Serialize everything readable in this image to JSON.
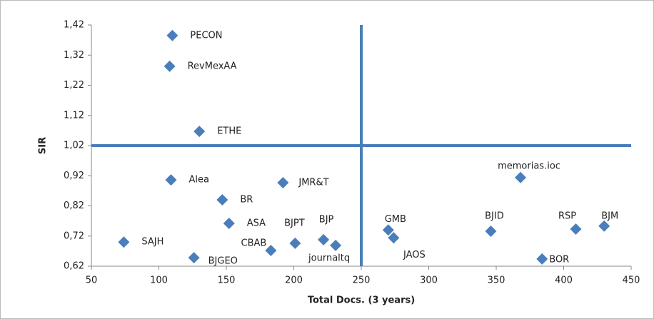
{
  "chart_data": {
    "type": "scatter",
    "x_label": "Total Docs. (3 years)",
    "y_label": "SIR",
    "color": "#4a7ebb",
    "labels": [
      "PECON",
      "RevMexAA",
      "ETHE",
      "Alea",
      "JMR&T",
      "BR",
      "ASA",
      "SAJH",
      "BJPT",
      "BJP",
      "journaltq",
      "CBAB",
      "BJGEO",
      "GMB",
      "JAOS",
      "BJID",
      "memorias.ioc",
      "RSP",
      "BJM",
      "BOR"
    ],
    "x": [
      110,
      108,
      130,
      109,
      192,
      147,
      152,
      74,
      201,
      222,
      231,
      183,
      126,
      270,
      274,
      346,
      368,
      409,
      430,
      384
    ],
    "y": [
      1.385,
      1.283,
      1.067,
      0.906,
      0.897,
      0.84,
      0.762,
      0.7,
      0.696,
      0.708,
      0.689,
      0.672,
      0.648,
      0.74,
      0.714,
      0.736,
      0.914,
      0.743,
      0.753,
      0.644
    ],
    "xlim": [
      50,
      450
    ],
    "xticks": [
      50,
      100,
      150,
      200,
      250,
      300,
      350,
      400,
      450
    ],
    "ylim": [
      0.62,
      1.42
    ],
    "yticks": [
      {
        "value": 0.62,
        "label": "0,62"
      },
      {
        "value": 0.72,
        "label": "0,72"
      },
      {
        "value": 0.82,
        "label": "0,82"
      },
      {
        "value": 0.92,
        "label": "0,92"
      },
      {
        "value": 1.02,
        "label": "1,02"
      },
      {
        "value": 1.12,
        "label": "1,12"
      },
      {
        "value": 1.22,
        "label": "1,22"
      },
      {
        "value": 1.32,
        "label": "1,32"
      },
      {
        "value": 1.42,
        "label": "1,42"
      }
    ],
    "reference_lines": {
      "x": 250,
      "y": 1.02
    }
  }
}
